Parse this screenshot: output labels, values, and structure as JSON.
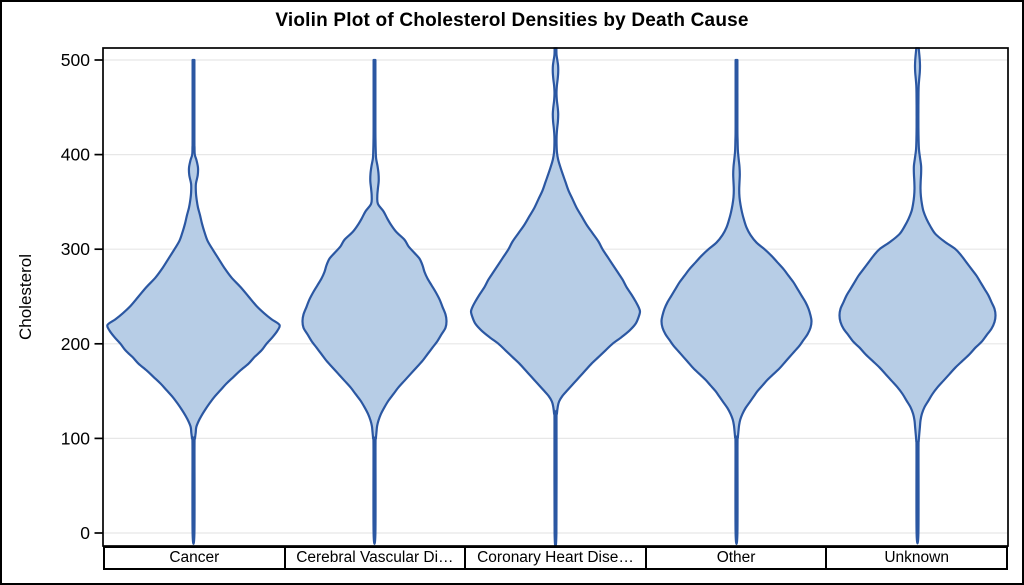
{
  "title": "Violin Plot of Cholesterol Densities by Death Cause",
  "colors": {
    "background": "#ffffff",
    "frame": "#000000",
    "grid": "#e7e7e7",
    "text": "#000000",
    "violin_fill": "#b7cde6",
    "violin_stroke": "#2b57a2"
  },
  "chart_data": {
    "type": "violin",
    "title": "Violin Plot of Cholesterol Densities by Death Cause",
    "xlabel": "",
    "ylabel": "Cholesterol",
    "ylim": [
      0,
      500
    ],
    "yticks": [
      0,
      100,
      200,
      300,
      400,
      500
    ],
    "grid": "horizontal",
    "categories": [
      "Cancer",
      "Cerebral Vascular Di…",
      "Coronary Heart Dise…",
      "Other",
      "Unknown"
    ],
    "series": [
      {
        "name": "Cancer",
        "profile_format": [
          "cholesterol_value",
          "half_width_px"
        ],
        "profile": [
          [
            500,
            0.9
          ],
          [
            420,
            0.9
          ],
          [
            408,
            1.0
          ],
          [
            400,
            1.3
          ],
          [
            394,
            3.0
          ],
          [
            386,
            4.5
          ],
          [
            378,
            4.2
          ],
          [
            369,
            2.4
          ],
          [
            360,
            2.4
          ],
          [
            352,
            3.2
          ],
          [
            344,
            4.5
          ],
          [
            336,
            6.5
          ],
          [
            327,
            8.5
          ],
          [
            318,
            11
          ],
          [
            309,
            14
          ],
          [
            300,
            19
          ],
          [
            290,
            25
          ],
          [
            280,
            31
          ],
          [
            270,
            38
          ],
          [
            260,
            47
          ],
          [
            250,
            55
          ],
          [
            240,
            63
          ],
          [
            232,
            71
          ],
          [
            226,
            78
          ],
          [
            220,
            86
          ],
          [
            214,
            84
          ],
          [
            207,
            79
          ],
          [
            200,
            73
          ],
          [
            193,
            68
          ],
          [
            186,
            61
          ],
          [
            179,
            55
          ],
          [
            172,
            47
          ],
          [
            165,
            40
          ],
          [
            158,
            33
          ],
          [
            151,
            27
          ],
          [
            144,
            21
          ],
          [
            137,
            16
          ],
          [
            130,
            11.5
          ],
          [
            124,
            8
          ],
          [
            118,
            5
          ],
          [
            112,
            2.8
          ],
          [
            106,
            2.2
          ],
          [
            100,
            1.5
          ],
          [
            92,
            1.0
          ],
          [
            0,
            0.9
          ]
        ]
      },
      {
        "name": "Cerebral Vascular Disease",
        "profile_format": [
          "cholesterol_value",
          "half_width_px"
        ],
        "profile": [
          [
            500,
            0.9
          ],
          [
            430,
            0.9
          ],
          [
            415,
            1.0
          ],
          [
            405,
            1.2
          ],
          [
            396,
            1.6
          ],
          [
            388,
            3.0
          ],
          [
            380,
            4.0
          ],
          [
            372,
            4.2
          ],
          [
            364,
            3.4
          ],
          [
            356,
            2.8
          ],
          [
            348,
            3.4
          ],
          [
            340,
            9
          ],
          [
            332,
            13
          ],
          [
            325,
            17
          ],
          [
            318,
            22
          ],
          [
            310,
            30
          ],
          [
            303,
            34
          ],
          [
            296,
            40
          ],
          [
            290,
            45
          ],
          [
            283,
            48
          ],
          [
            276,
            50
          ],
          [
            269,
            53
          ],
          [
            262,
            57
          ],
          [
            255,
            61
          ],
          [
            247,
            65
          ],
          [
            239,
            68
          ],
          [
            231,
            71
          ],
          [
            224,
            72
          ],
          [
            217,
            71
          ],
          [
            210,
            67
          ],
          [
            203,
            63
          ],
          [
            196,
            58
          ],
          [
            189,
            53
          ],
          [
            182,
            48
          ],
          [
            175,
            42
          ],
          [
            168,
            36
          ],
          [
            161,
            30
          ],
          [
            154,
            24
          ],
          [
            147,
            19
          ],
          [
            140,
            14
          ],
          [
            133,
            10
          ],
          [
            126,
            6.5
          ],
          [
            119,
            4
          ],
          [
            113,
            2.6
          ],
          [
            107,
            2.0
          ],
          [
            100,
            1.4
          ],
          [
            92,
            1.0
          ],
          [
            0,
            0.9
          ]
        ]
      },
      {
        "name": "Coronary Heart Disease",
        "profile_format": [
          "cholesterol_value",
          "half_width_px"
        ],
        "profile": [
          [
            515,
            0.9
          ],
          [
            506,
            1.0
          ],
          [
            500,
            1.8
          ],
          [
            494,
            2.6
          ],
          [
            487,
            2.7
          ],
          [
            480,
            2.2
          ],
          [
            473,
            1.4
          ],
          [
            465,
            1.0
          ],
          [
            457,
            1.4
          ],
          [
            450,
            2.2
          ],
          [
            443,
            2.7
          ],
          [
            435,
            2.4
          ],
          [
            427,
            1.6
          ],
          [
            419,
            1.1
          ],
          [
            410,
            1.1
          ],
          [
            402,
            1.5
          ],
          [
            395,
            2.6
          ],
          [
            388,
            4.5
          ],
          [
            380,
            7
          ],
          [
            371,
            10
          ],
          [
            362,
            13
          ],
          [
            353,
            17
          ],
          [
            344,
            21
          ],
          [
            335,
            26
          ],
          [
            326,
            31
          ],
          [
            317,
            37
          ],
          [
            308,
            43
          ],
          [
            300,
            47
          ],
          [
            292,
            52
          ],
          [
            284,
            57
          ],
          [
            276,
            62
          ],
          [
            268,
            67
          ],
          [
            260,
            71
          ],
          [
            252,
            76
          ],
          [
            245,
            80
          ],
          [
            239,
            83
          ],
          [
            234,
            84.5
          ],
          [
            228,
            83
          ],
          [
            221,
            80
          ],
          [
            214,
            74
          ],
          [
            207,
            66
          ],
          [
            200,
            57
          ],
          [
            193,
            50
          ],
          [
            186,
            43
          ],
          [
            179,
            36
          ],
          [
            172,
            30
          ],
          [
            165,
            24
          ],
          [
            158,
            18
          ],
          [
            151,
            12
          ],
          [
            145,
            7
          ],
          [
            139,
            3.6
          ],
          [
            133,
            2.2
          ],
          [
            126,
            1.4
          ],
          [
            118,
            1.0
          ],
          [
            0,
            0.9
          ]
        ]
      },
      {
        "name": "Other",
        "profile_format": [
          "cholesterol_value",
          "half_width_px"
        ],
        "profile": [
          [
            500,
            0.9
          ],
          [
            430,
            0.9
          ],
          [
            415,
            1.1
          ],
          [
            404,
            1.4
          ],
          [
            395,
            2.2
          ],
          [
            387,
            3.0
          ],
          [
            379,
            3.3
          ],
          [
            371,
            3.0
          ],
          [
            363,
            2.7
          ],
          [
            355,
            3.0
          ],
          [
            347,
            4
          ],
          [
            339,
            5.5
          ],
          [
            331,
            7.5
          ],
          [
            323,
            10
          ],
          [
            315,
            14
          ],
          [
            307,
            20
          ],
          [
            300,
            28
          ],
          [
            293,
            35
          ],
          [
            286,
            41
          ],
          [
            279,
            47
          ],
          [
            272,
            52
          ],
          [
            265,
            57
          ],
          [
            258,
            61
          ],
          [
            251,
            65
          ],
          [
            244,
            69
          ],
          [
            237,
            72
          ],
          [
            230,
            74
          ],
          [
            224,
            75
          ],
          [
            217,
            74
          ],
          [
            210,
            71
          ],
          [
            204,
            67
          ],
          [
            198,
            63
          ],
          [
            192,
            58
          ],
          [
            186,
            53
          ],
          [
            180,
            48
          ],
          [
            174,
            43
          ],
          [
            168,
            37
          ],
          [
            162,
            31
          ],
          [
            156,
            26
          ],
          [
            150,
            21
          ],
          [
            144,
            17
          ],
          [
            138,
            13
          ],
          [
            132,
            9
          ],
          [
            126,
            6
          ],
          [
            120,
            3.8
          ],
          [
            114,
            2.6
          ],
          [
            108,
            2.0
          ],
          [
            101,
            1.4
          ],
          [
            93,
            1.0
          ],
          [
            0,
            0.9
          ]
        ]
      },
      {
        "name": "Unknown",
        "profile_format": [
          "cholesterol_value",
          "half_width_px"
        ],
        "profile": [
          [
            515,
            1.0
          ],
          [
            508,
            1.6
          ],
          [
            501,
            2.2
          ],
          [
            494,
            2.5
          ],
          [
            487,
            2.3
          ],
          [
            480,
            1.7
          ],
          [
            473,
            1.2
          ],
          [
            465,
            1.0
          ],
          [
            450,
            0.9
          ],
          [
            430,
            0.9
          ],
          [
            415,
            1.1
          ],
          [
            405,
            1.5
          ],
          [
            396,
            2.6
          ],
          [
            388,
            3.6
          ],
          [
            380,
            3.6
          ],
          [
            372,
            3.2
          ],
          [
            364,
            3.0
          ],
          [
            356,
            3.4
          ],
          [
            348,
            4.4
          ],
          [
            340,
            6
          ],
          [
            332,
            9
          ],
          [
            324,
            13
          ],
          [
            316,
            18
          ],
          [
            308,
            27
          ],
          [
            300,
            38
          ],
          [
            293,
            44
          ],
          [
            286,
            49
          ],
          [
            279,
            54
          ],
          [
            272,
            59
          ],
          [
            265,
            63
          ],
          [
            258,
            67
          ],
          [
            251,
            71
          ],
          [
            244,
            74
          ],
          [
            237,
            77
          ],
          [
            230,
            78
          ],
          [
            223,
            77
          ],
          [
            216,
            74
          ],
          [
            209,
            69
          ],
          [
            202,
            64
          ],
          [
            196,
            58
          ],
          [
            189,
            52
          ],
          [
            182,
            45
          ],
          [
            175,
            38
          ],
          [
            168,
            32
          ],
          [
            161,
            26
          ],
          [
            154,
            20
          ],
          [
            147,
            15
          ],
          [
            140,
            11
          ],
          [
            133,
            7
          ],
          [
            126,
            4.4
          ],
          [
            119,
            3.0
          ],
          [
            112,
            2.4
          ],
          [
            105,
            1.8
          ],
          [
            97,
            1.2
          ],
          [
            88,
            1.0
          ],
          [
            0,
            0.9
          ]
        ]
      }
    ]
  }
}
